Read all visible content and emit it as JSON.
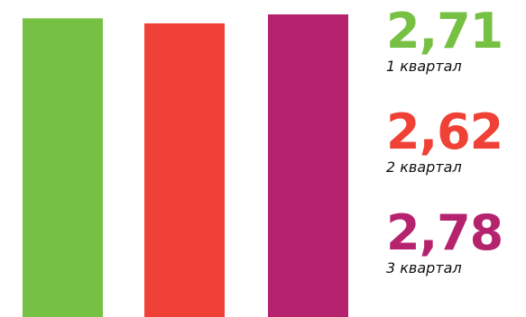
{
  "chart_data": {
    "type": "bar",
    "categories": [
      "1 квартал",
      "2 квартал",
      "3 квартал"
    ],
    "values": [
      2.71,
      2.62,
      2.78
    ],
    "value_labels": [
      "2,71",
      "2,62",
      "2,78"
    ],
    "colors": [
      "#76c043",
      "#ef4136",
      "#b5236f"
    ],
    "title": "",
    "xlabel": "",
    "ylabel": "",
    "ylim": [
      0,
      2.78
    ],
    "grid": false,
    "legend": "right"
  }
}
